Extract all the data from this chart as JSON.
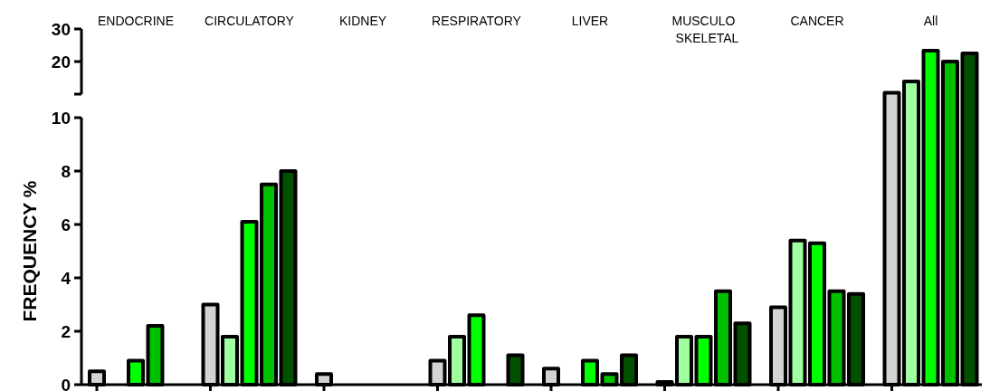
{
  "chart_data": [
    {
      "type": "bar",
      "categories": [
        "ENDOCRINE",
        "CIRCULATORY",
        "KIDNEY",
        "RESPIRATORY",
        "LIVER",
        "MUSCULO SKELETAL",
        "CANCER",
        "All"
      ],
      "ylim": [
        10,
        30
      ],
      "yticks": [
        {
          "value": 10,
          "label": null
        },
        20,
        30
      ],
      "series": [
        {
          "color": "#d3d3d3",
          "values": [
            null,
            null,
            null,
            null,
            null,
            null,
            null,
            10.4
          ]
        },
        {
          "color": "#a0ffa0",
          "values": [
            null,
            null,
            null,
            null,
            null,
            null,
            null,
            13.9
          ]
        },
        {
          "color": "#00ff00",
          "values": [
            null,
            null,
            null,
            null,
            null,
            null,
            null,
            23.3
          ]
        },
        {
          "color": "#00c000",
          "values": [
            null,
            null,
            null,
            null,
            null,
            null,
            null,
            20
          ]
        },
        {
          "color": "#005000",
          "values": [
            null,
            null,
            null,
            null,
            null,
            null,
            null,
            22.5
          ]
        }
      ]
    },
    {
      "type": "bar",
      "categories": [
        null,
        null,
        null,
        null,
        null,
        null,
        null,
        null
      ],
      "ylabel": "FREQUENCY %",
      "ylim": [
        0,
        10
      ],
      "yticks": [
        0,
        2,
        4,
        6,
        8,
        10
      ],
      "tick_labels": "y",
      "series": [
        {
          "color": "#d3d3d3",
          "values": [
            0.5,
            3.0,
            0.4,
            0.9,
            0.6,
            0.1,
            2.9,
            null
          ]
        },
        {
          "color": "#a0ffa0",
          "values": [
            null,
            1.8,
            null,
            1.8,
            null,
            1.8,
            5.4,
            null
          ]
        },
        {
          "color": "#00ff00",
          "values": [
            0.9,
            6.1,
            null,
            2.6,
            0.9,
            1.8,
            5.3,
            null
          ]
        },
        {
          "color": "#00c000",
          "values": [
            2.2,
            7.5,
            null,
            null,
            0.4,
            3.5,
            3.5,
            null
          ]
        },
        {
          "color": "#005000",
          "values": [
            null,
            8.0,
            null,
            1.1,
            1.1,
            2.3,
            3.4,
            null
          ]
        }
      ]
    }
  ]
}
